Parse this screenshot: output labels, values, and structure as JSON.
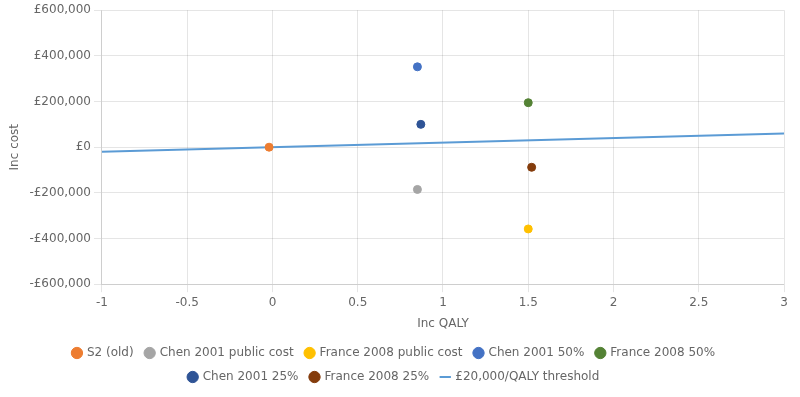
{
  "chart_data": {
    "type": "scatter",
    "xlabel": "Inc QALY",
    "ylabel": "Inc cost",
    "xlim": [
      -1,
      3
    ],
    "ylim": [
      -600000,
      600000
    ],
    "xticks": [
      -1,
      -0.5,
      0,
      0.5,
      1,
      1.5,
      2,
      2.5,
      3
    ],
    "yticks": [
      {
        "value": -600000,
        "label": "-£600,000"
      },
      {
        "value": -400000,
        "label": "-£400,000"
      },
      {
        "value": -200000,
        "label": "-£200,000"
      },
      {
        "value": 0,
        "label": "£0"
      },
      {
        "value": 200000,
        "label": "£200,000"
      },
      {
        "value": 400000,
        "label": "£400,000"
      },
      {
        "value": 600000,
        "label": "£600,000"
      }
    ],
    "grid": true,
    "legend": "bottom",
    "series": [
      {
        "name": "£20,000/QALY threshold",
        "type": "line",
        "color": "#5B9BD5",
        "x": [
          -1,
          3
        ],
        "values": [
          -20000,
          60000
        ]
      },
      {
        "name": "S2 (old)",
        "type": "scatter",
        "color": "#ED7D31",
        "x": [
          -0.02
        ],
        "values": [
          0
        ]
      },
      {
        "name": "Chen 2001 public cost",
        "type": "scatter",
        "color": "#A5A5A5",
        "x": [
          0.85
        ],
        "values": [
          -185000
        ]
      },
      {
        "name": "France 2008 public cost",
        "type": "scatter",
        "color": "#FFC000",
        "x": [
          1.5
        ],
        "values": [
          -358000
        ]
      },
      {
        "name": "Chen 2001 50%",
        "type": "scatter",
        "color": "#4472C4",
        "x": [
          0.85
        ],
        "values": [
          352000
        ]
      },
      {
        "name": "France 2008 50%",
        "type": "scatter",
        "color": "#548235",
        "x": [
          1.5
        ],
        "values": [
          195000
        ]
      },
      {
        "name": "Chen 2001 25%",
        "type": "scatter",
        "color": "#2F5496",
        "x": [
          0.87
        ],
        "values": [
          100000
        ]
      },
      {
        "name": "France 2008 25%",
        "type": "scatter",
        "color": "#843C0C",
        "x": [
          1.52
        ],
        "values": [
          -88000
        ]
      }
    ]
  }
}
